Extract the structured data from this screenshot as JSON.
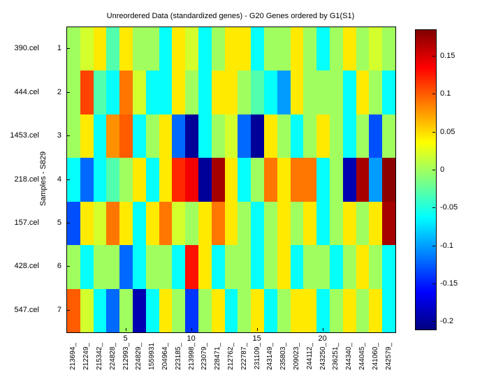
{
  "chart_data": {
    "type": "heatmap",
    "title": "Unreordered Data (standardized genes) - G20 Genes ordered by G1(S1)",
    "ylabel": "Samples - S829",
    "row_labels": [
      "390.cel",
      "444.cel",
      "1453.cel",
      "218.cel",
      "157.cel",
      "428.cel",
      "547.cel"
    ],
    "row_numbers": [
      "1",
      "2",
      "3",
      "4",
      "5",
      "6",
      "7"
    ],
    "col_labels": [
      "213694_",
      "212249_",
      "215342_",
      "224828_",
      "212993_",
      "224829_",
      "1559931",
      "204964_",
      "223185_",
      "213998_",
      "223079_",
      "228471_",
      "212762_",
      "222787_",
      "231109_",
      "243149_",
      "235803_",
      "209023_",
      "244112_",
      "243250_",
      "236251_",
      "244340_",
      "244045_",
      "241060_",
      "242579_"
    ],
    "x_axis_ticks": [
      {
        "label": "5",
        "col": 5
      },
      {
        "label": "10",
        "col": 10
      },
      {
        "label": "15",
        "col": 15
      },
      {
        "label": "20",
        "col": 20
      }
    ],
    "colorbar_ticks": [
      "0.15",
      "0.1",
      "0.05",
      "0",
      "-0.05",
      "-0.1",
      "-0.15",
      "-0.2"
    ],
    "clim": [
      -0.21,
      0.185
    ],
    "colormap": "jet",
    "values": [
      [
        0.0,
        0.02,
        0.045,
        -0.03,
        0.045,
        0.0,
        0.0,
        -0.06,
        0.045,
        0.02,
        -0.06,
        0.0,
        0.045,
        0.045,
        -0.06,
        0.0,
        0.0,
        0.045,
        0.0,
        -0.06,
        0.0,
        0.045,
        0.0,
        0.02,
        0.0
      ],
      [
        0.0,
        0.11,
        -0.03,
        -0.06,
        0.09,
        0.02,
        -0.06,
        -0.06,
        0.045,
        0.0,
        -0.06,
        0.045,
        0.045,
        0.0,
        -0.03,
        -0.06,
        -0.1,
        0.045,
        0.0,
        0.0,
        0.0,
        -0.06,
        0.045,
        0.0,
        -0.06
      ],
      [
        0.0,
        0.045,
        -0.06,
        0.08,
        0.1,
        -0.06,
        0.0,
        0.045,
        -0.12,
        -0.2,
        -0.06,
        0.0,
        0.02,
        -0.12,
        -0.2,
        0.045,
        0.0,
        -0.06,
        0.0,
        0.045,
        0.0,
        -0.06,
        0.0,
        -0.13,
        0.0
      ],
      [
        -0.06,
        -0.12,
        -0.06,
        -0.03,
        0.0,
        0.045,
        -0.06,
        0.045,
        0.12,
        0.14,
        -0.2,
        0.17,
        0.045,
        -0.06,
        0.0,
        0.09,
        0.045,
        0.09,
        0.09,
        -0.06,
        0.0,
        -0.19,
        0.17,
        -0.1,
        0.18
      ],
      [
        -0.13,
        0.045,
        0.02,
        0.09,
        0.045,
        -0.06,
        0.045,
        0.09,
        0.02,
        0.0,
        0.045,
        0.09,
        0.045,
        0.0,
        -0.06,
        0.0,
        0.045,
        0.0,
        0.045,
        -0.06,
        0.0,
        0.045,
        0.0,
        0.045,
        0.17
      ],
      [
        0.0,
        -0.06,
        0.0,
        0.0,
        -0.12,
        -0.06,
        0.0,
        0.0,
        -0.06,
        0.13,
        0.045,
        -0.06,
        0.0,
        0.0,
        -0.06,
        0.0,
        0.045,
        -0.06,
        0.0,
        0.0,
        -0.06,
        0.0,
        0.045,
        0.0,
        -0.06
      ],
      [
        0.1,
        0.02,
        -0.06,
        -0.12,
        0.0,
        -0.19,
        -0.06,
        0.045,
        0.0,
        -0.14,
        0.0,
        0.045,
        -0.06,
        0.0,
        0.045,
        -0.06,
        0.0,
        0.045,
        0.045,
        -0.06,
        0.0,
        0.045,
        0.0,
        0.045,
        -0.06
      ]
    ]
  }
}
